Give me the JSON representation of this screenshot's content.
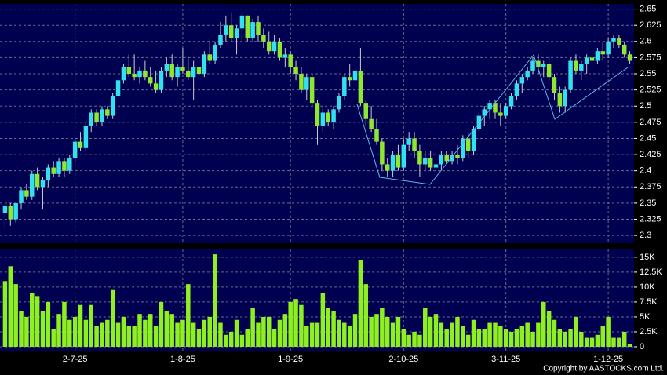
{
  "chart_data": {
    "type": "candlestick",
    "price": {
      "ylim": [
        2.288,
        2.658
      ],
      "yticks": [
        2.3,
        2.325,
        2.35,
        2.375,
        2.4,
        2.425,
        2.45,
        2.475,
        2.5,
        2.525,
        2.55,
        2.575,
        2.6,
        2.625,
        2.65
      ],
      "up_color": "#33e0f0",
      "down_color": "#8ee832",
      "grid": true,
      "candles": [
        [
          2.335,
          2.345,
          2.31,
          2.345
        ],
        [
          2.345,
          2.35,
          2.315,
          2.325
        ],
        [
          2.325,
          2.35,
          2.32,
          2.35
        ],
        [
          2.35,
          2.375,
          2.34,
          2.37
        ],
        [
          2.37,
          2.38,
          2.355,
          2.36
        ],
        [
          2.36,
          2.4,
          2.355,
          2.395
        ],
        [
          2.395,
          2.405,
          2.37,
          2.375
        ],
        [
          2.375,
          2.39,
          2.34,
          2.385
        ],
        [
          2.385,
          2.41,
          2.375,
          2.405
        ],
        [
          2.405,
          2.415,
          2.39,
          2.395
        ],
        [
          2.395,
          2.42,
          2.39,
          2.415
        ],
        [
          2.415,
          2.42,
          2.39,
          2.4
        ],
        [
          2.4,
          2.425,
          2.395,
          2.42
        ],
        [
          2.42,
          2.45,
          2.415,
          2.445
        ],
        [
          2.445,
          2.46,
          2.43,
          2.435
        ],
        [
          2.435,
          2.475,
          2.43,
          2.47
        ],
        [
          2.47,
          2.495,
          2.46,
          2.49
        ],
        [
          2.49,
          2.495,
          2.47,
          2.475
        ],
        [
          2.475,
          2.5,
          2.47,
          2.495
        ],
        [
          2.495,
          2.5,
          2.48,
          2.485
        ],
        [
          2.485,
          2.52,
          2.48,
          2.515
        ],
        [
          2.515,
          2.545,
          2.51,
          2.54
        ],
        [
          2.54,
          2.565,
          2.535,
          2.56
        ],
        [
          2.56,
          2.58,
          2.545,
          2.55
        ],
        [
          2.55,
          2.58,
          2.54,
          2.545
        ],
        [
          2.545,
          2.56,
          2.535,
          2.555
        ],
        [
          2.555,
          2.57,
          2.54,
          2.545
        ],
        [
          2.545,
          2.56,
          2.53,
          2.535
        ],
        [
          2.535,
          2.555,
          2.52,
          2.525
        ],
        [
          2.525,
          2.56,
          2.52,
          2.555
        ],
        [
          2.555,
          2.575,
          2.545,
          2.565
        ],
        [
          2.565,
          2.58,
          2.54,
          2.545
        ],
        [
          2.545,
          2.565,
          2.53,
          2.56
        ],
        [
          2.56,
          2.59,
          2.55,
          2.555
        ],
        [
          2.555,
          2.575,
          2.54,
          2.545
        ],
        [
          2.545,
          2.57,
          2.51,
          2.56
        ],
        [
          2.56,
          2.58,
          2.545,
          2.55
        ],
        [
          2.55,
          2.585,
          2.545,
          2.58
        ],
        [
          2.58,
          2.6,
          2.565,
          2.57
        ],
        [
          2.57,
          2.6,
          2.565,
          2.595
        ],
        [
          2.595,
          2.63,
          2.59,
          2.61
        ],
        [
          2.61,
          2.64,
          2.6,
          2.625
        ],
        [
          2.625,
          2.645,
          2.6,
          2.605
        ],
        [
          2.605,
          2.625,
          2.58,
          2.62
        ],
        [
          2.62,
          2.645,
          2.6,
          2.64
        ],
        [
          2.64,
          2.64,
          2.6,
          2.605
        ],
        [
          2.605,
          2.635,
          2.6,
          2.63
        ],
        [
          2.63,
          2.64,
          2.6,
          2.61
        ],
        [
          2.61,
          2.62,
          2.59,
          2.6
        ],
        [
          2.6,
          2.615,
          2.58,
          2.585
        ],
        [
          2.585,
          2.61,
          2.58,
          2.6
        ],
        [
          2.6,
          2.605,
          2.57,
          2.575
        ],
        [
          2.575,
          2.59,
          2.56,
          2.58
        ],
        [
          2.58,
          2.585,
          2.55,
          2.56
        ],
        [
          2.56,
          2.57,
          2.54,
          2.55
        ],
        [
          2.55,
          2.56,
          2.52,
          2.525
        ],
        [
          2.525,
          2.55,
          2.51,
          2.545
        ],
        [
          2.545,
          2.55,
          2.5,
          2.505
        ],
        [
          2.505,
          2.51,
          2.44,
          2.47
        ],
        [
          2.47,
          2.5,
          2.46,
          2.49
        ],
        [
          2.49,
          2.495,
          2.47,
          2.475
        ],
        [
          2.475,
          2.5,
          2.465,
          2.495
        ],
        [
          2.495,
          2.52,
          2.49,
          2.515
        ],
        [
          2.515,
          2.55,
          2.51,
          2.545
        ],
        [
          2.545,
          2.565,
          2.53,
          2.54
        ],
        [
          2.54,
          2.56,
          2.53,
          2.555
        ],
        [
          2.555,
          2.59,
          2.5,
          2.505
        ],
        [
          2.505,
          2.51,
          2.47,
          2.48
        ],
        [
          2.48,
          2.5,
          2.46,
          2.465
        ],
        [
          2.465,
          2.48,
          2.44,
          2.445
        ],
        [
          2.445,
          2.45,
          2.4,
          2.41
        ],
        [
          2.41,
          2.42,
          2.39,
          2.4
        ],
        [
          2.4,
          2.43,
          2.39,
          2.425
        ],
        [
          2.425,
          2.44,
          2.4,
          2.405
        ],
        [
          2.405,
          2.45,
          2.4,
          2.44
        ],
        [
          2.44,
          2.46,
          2.43,
          2.45
        ],
        [
          2.45,
          2.46,
          2.42,
          2.43
        ],
        [
          2.43,
          2.44,
          2.39,
          2.41
        ],
        [
          2.41,
          2.43,
          2.4,
          2.42
        ],
        [
          2.42,
          2.43,
          2.4,
          2.405
        ],
        [
          2.405,
          2.42,
          2.38,
          2.41
        ],
        [
          2.41,
          2.43,
          2.4,
          2.425
        ],
        [
          2.425,
          2.43,
          2.41,
          2.415
        ],
        [
          2.415,
          2.43,
          2.41,
          2.425
        ],
        [
          2.425,
          2.44,
          2.41,
          2.42
        ],
        [
          2.42,
          2.455,
          2.415,
          2.45
        ],
        [
          2.45,
          2.46,
          2.42,
          2.43
        ],
        [
          2.43,
          2.47,
          2.425,
          2.465
        ],
        [
          2.465,
          2.49,
          2.46,
          2.485
        ],
        [
          2.485,
          2.5,
          2.47,
          2.495
        ],
        [
          2.495,
          2.51,
          2.48,
          2.505
        ],
        [
          2.505,
          2.51,
          2.48,
          2.49
        ],
        [
          2.49,
          2.505,
          2.47,
          2.485
        ],
        [
          2.485,
          2.505,
          2.48,
          2.5
        ],
        [
          2.5,
          2.52,
          2.495,
          2.515
        ],
        [
          2.515,
          2.54,
          2.51,
          2.535
        ],
        [
          2.535,
          2.55,
          2.52,
          2.545
        ],
        [
          2.545,
          2.56,
          2.54,
          2.555
        ],
        [
          2.555,
          2.575,
          2.55,
          2.57
        ],
        [
          2.57,
          2.58,
          2.55,
          2.56
        ],
        [
          2.56,
          2.57,
          2.545,
          2.565
        ],
        [
          2.565,
          2.575,
          2.54,
          2.545
        ],
        [
          2.545,
          2.55,
          2.51,
          2.52
        ],
        [
          2.52,
          2.53,
          2.49,
          2.5
        ],
        [
          2.5,
          2.53,
          2.49,
          2.525
        ],
        [
          2.525,
          2.575,
          2.52,
          2.57
        ],
        [
          2.57,
          2.58,
          2.55,
          2.555
        ],
        [
          2.555,
          2.57,
          2.54,
          2.565
        ],
        [
          2.565,
          2.58,
          2.55,
          2.575
        ],
        [
          2.575,
          2.585,
          2.56,
          2.57
        ],
        [
          2.57,
          2.59,
          2.565,
          2.585
        ],
        [
          2.585,
          2.6,
          2.57,
          2.58
        ],
        [
          2.58,
          2.605,
          2.575,
          2.6
        ],
        [
          2.6,
          2.61,
          2.59,
          2.605
        ],
        [
          2.605,
          2.61,
          2.59,
          2.595
        ],
        [
          2.595,
          2.6,
          2.575,
          2.58
        ],
        [
          2.58,
          2.585,
          2.565,
          2.57
        ]
      ]
    },
    "volume": {
      "ylim": [
        -660,
        16300
      ],
      "color": "#8ef020",
      "yticks": [
        0,
        {
          "value": 2500,
          "label": "2.5K"
        },
        {
          "value": 5000,
          "label": "5K"
        },
        {
          "value": 7500,
          "label": "7.5K"
        },
        {
          "value": 10000,
          "label": "10K"
        },
        {
          "value": 12500,
          "label": "12.5K"
        },
        {
          "value": 15000,
          "label": "15K"
        }
      ],
      "values": [
        11000,
        13500,
        10500,
        6000,
        5000,
        9000,
        8500,
        6000,
        7500,
        3000,
        5500,
        7500,
        4500,
        5000,
        7000,
        4500,
        7000,
        3500,
        4000,
        4500,
        9500,
        4000,
        5000,
        3500,
        3500,
        5500,
        4500,
        5500,
        3500,
        7500,
        6000,
        5500,
        4000,
        4500,
        10500,
        4000,
        3000,
        4500,
        5000,
        15500,
        4000,
        2000,
        2500,
        4500,
        2000,
        3000,
        6500,
        4000,
        5000,
        5000,
        3000,
        4500,
        5500,
        7500,
        8000,
        7000,
        3500,
        4000,
        4000,
        9000,
        6500,
        6000,
        4500,
        4000,
        3500,
        5500,
        14500,
        10500,
        5000,
        5500,
        6500,
        5000,
        4000,
        5000,
        3000,
        2000,
        2500,
        2000,
        6500,
        5000,
        5500,
        4000,
        3000,
        4000,
        5000,
        3500,
        2000,
        4500,
        3000,
        3000,
        4000,
        4000,
        3500,
        3000,
        2500,
        3000,
        3500,
        4000,
        2500,
        4000,
        7500,
        6000,
        4500,
        3000,
        2500,
        3000,
        5000,
        2500,
        1500,
        1500,
        2000,
        3500,
        5000,
        1500,
        1500,
        2500,
        500
      ]
    },
    "categories": [
      null,
      null,
      null,
      null,
      null,
      null,
      null,
      null,
      null,
      null,
      null,
      null,
      null,
      "2-7-25",
      null,
      null,
      null,
      null,
      null,
      null,
      null,
      null,
      null,
      null,
      null,
      null,
      null,
      null,
      null,
      null,
      null,
      null,
      null,
      "1-8-25",
      null,
      null,
      null,
      null,
      null,
      null,
      null,
      null,
      null,
      null,
      null,
      null,
      null,
      null,
      null,
      null,
      null,
      null,
      null,
      "1-9-25",
      null,
      null,
      null,
      null,
      null,
      null,
      null,
      null,
      null,
      null,
      null,
      null,
      null,
      null,
      null,
      null,
      null,
      null,
      null,
      null,
      "2-10-25",
      null,
      null,
      null,
      null,
      null,
      null,
      null,
      null,
      null,
      null,
      null,
      null,
      null,
      null,
      null,
      null,
      null,
      null,
      "3-11-25",
      null,
      null,
      null,
      null,
      null,
      null,
      null,
      null,
      null,
      null,
      null,
      null,
      null,
      null,
      null,
      null,
      null,
      null,
      "1-12-25",
      null,
      null,
      null,
      null
    ],
    "copyright": "Copyright by AASTOCKS.com Ltd."
  }
}
